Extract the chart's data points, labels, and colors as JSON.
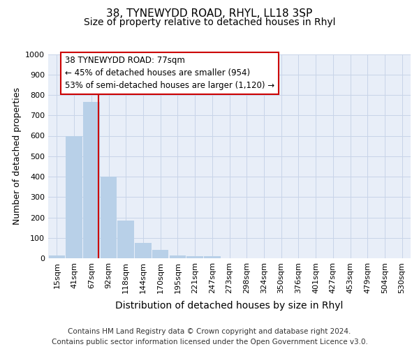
{
  "title": "38, TYNEWYDD ROAD, RHYL, LL18 3SP",
  "subtitle": "Size of property relative to detached houses in Rhyl",
  "xlabel": "Distribution of detached houses by size in Rhyl",
  "ylabel": "Number of detached properties",
  "bins": [
    "15sqm",
    "41sqm",
    "67sqm",
    "92sqm",
    "118sqm",
    "144sqm",
    "170sqm",
    "195sqm",
    "221sqm",
    "247sqm",
    "273sqm",
    "298sqm",
    "324sqm",
    "350sqm",
    "376sqm",
    "401sqm",
    "427sqm",
    "453sqm",
    "479sqm",
    "504sqm",
    "530sqm"
  ],
  "values": [
    15,
    600,
    765,
    400,
    185,
    75,
    40,
    15,
    10,
    10,
    0,
    0,
    0,
    0,
    0,
    0,
    0,
    0,
    0,
    0,
    0
  ],
  "bar_color": "#b8d0e8",
  "grid_color": "#c8d4e8",
  "bg_color": "#e8eef8",
  "property_line_bin": 2,
  "property_line_color": "#cc0000",
  "annotation_line1": "38 TYNEWYDD ROAD: 77sqm",
  "annotation_line2": "← 45% of detached houses are smaller (954)",
  "annotation_line3": "53% of semi-detached houses are larger (1,120) →",
  "annotation_box_color": "#cc0000",
  "ylim": [
    0,
    1000
  ],
  "yticks": [
    0,
    100,
    200,
    300,
    400,
    500,
    600,
    700,
    800,
    900,
    1000
  ],
  "footer_line1": "Contains HM Land Registry data © Crown copyright and database right 2024.",
  "footer_line2": "Contains public sector information licensed under the Open Government Licence v3.0.",
  "title_fontsize": 11,
  "subtitle_fontsize": 10,
  "xlabel_fontsize": 10,
  "ylabel_fontsize": 9,
  "tick_fontsize": 8,
  "footer_fontsize": 7.5,
  "ann_fontsize": 8.5
}
